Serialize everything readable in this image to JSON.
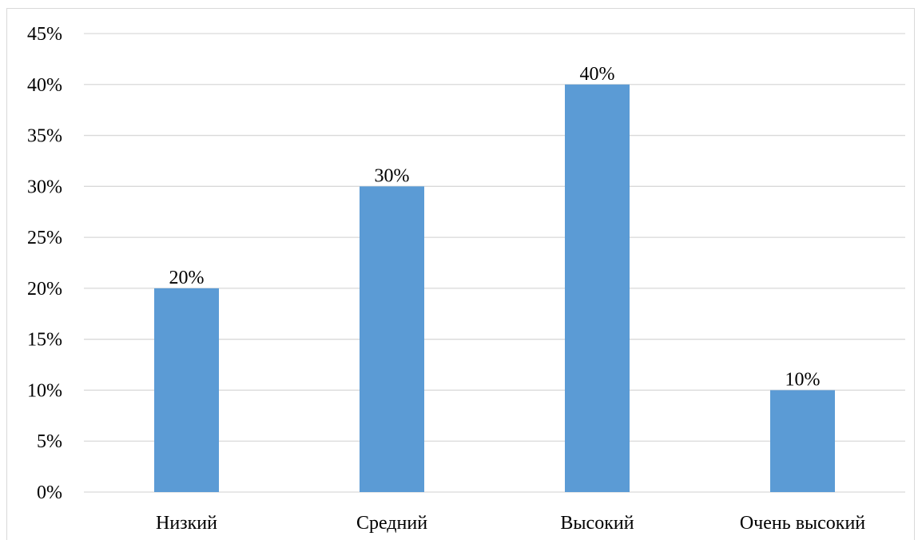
{
  "chart_data": {
    "type": "bar",
    "title": "",
    "xlabel": "",
    "ylabel": "",
    "categories": [
      "Низкий",
      "Средний",
      "Высокий",
      "Очень высокий"
    ],
    "values": [
      20,
      30,
      40,
      10
    ],
    "value_labels": [
      "20%",
      "30%",
      "40%",
      "10%"
    ],
    "ylim": [
      0,
      45
    ],
    "yticks": [
      0,
      5,
      10,
      15,
      20,
      25,
      30,
      35,
      40,
      45
    ],
    "ytick_labels": [
      "0%",
      "5%",
      "10%",
      "15%",
      "20%",
      "25%",
      "30%",
      "35%",
      "40%",
      "45%"
    ],
    "grid": true,
    "legend": "none",
    "colors": {
      "bar": "#5b9bd5",
      "grid": "#d9d9d9"
    }
  }
}
